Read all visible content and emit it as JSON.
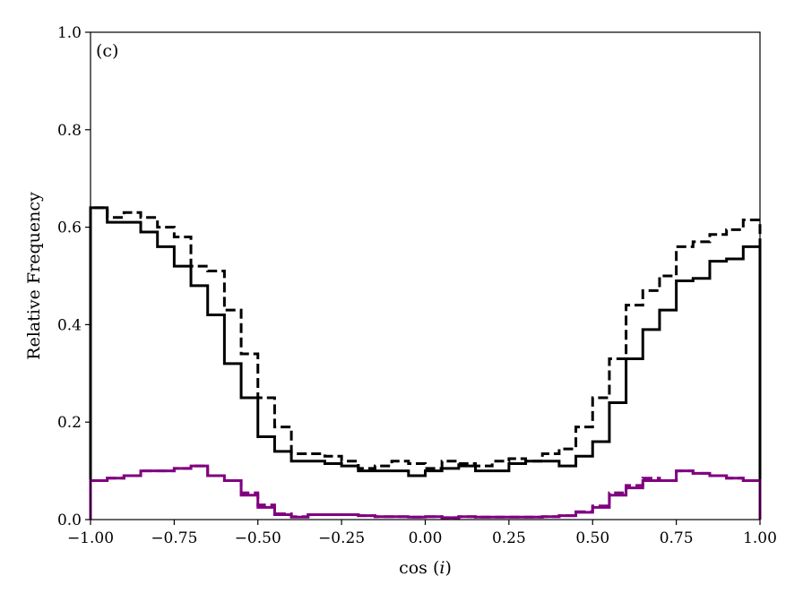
{
  "chart_data": {
    "type": "line",
    "step": true,
    "panel_label": "(c)",
    "xlabel": "cos (i)",
    "xlabel_parts": [
      "cos (",
      "i",
      ")"
    ],
    "ylabel": "Relative Frequency",
    "xlim": [
      -1.0,
      1.0
    ],
    "ylim": [
      0.0,
      1.0
    ],
    "xticks": [
      -1.0,
      -0.75,
      -0.5,
      -0.25,
      0.0,
      0.25,
      0.5,
      0.75,
      1.0
    ],
    "xtick_labels": [
      "−1.00",
      "−0.75",
      "−0.50",
      "−0.25",
      "0.00",
      "0.25",
      "0.50",
      "0.75",
      "1.00"
    ],
    "yticks": [
      0.0,
      0.2,
      0.4,
      0.6,
      0.8,
      1.0
    ],
    "ytick_labels": [
      "0.0",
      "0.2",
      "0.4",
      "0.6",
      "0.8",
      "1.0"
    ],
    "grid": false,
    "bin_edges": [
      -1.0,
      -0.95,
      -0.9,
      -0.85,
      -0.8,
      -0.75,
      -0.7,
      -0.65,
      -0.6,
      -0.55,
      -0.5,
      -0.45,
      -0.4,
      -0.35,
      -0.3,
      -0.25,
      -0.2,
      -0.15,
      -0.1,
      -0.05,
      0.0,
      0.05,
      0.1,
      0.15,
      0.2,
      0.25,
      0.3,
      0.35,
      0.4,
      0.45,
      0.5,
      0.55,
      0.6,
      0.65,
      0.7,
      0.75,
      0.8,
      0.85,
      0.9,
      0.95,
      1.0
    ],
    "series": [
      {
        "color": "#000000",
        "linestyle": "solid",
        "values": [
          0.64,
          0.61,
          0.61,
          0.59,
          0.56,
          0.52,
          0.48,
          0.42,
          0.32,
          0.25,
          0.17,
          0.14,
          0.12,
          0.12,
          0.115,
          0.11,
          0.1,
          0.1,
          0.1,
          0.09,
          0.1,
          0.105,
          0.11,
          0.1,
          0.1,
          0.115,
          0.12,
          0.12,
          0.11,
          0.13,
          0.16,
          0.24,
          0.33,
          0.39,
          0.43,
          0.49,
          0.495,
          0.53,
          0.535,
          0.56,
          0.58
        ]
      },
      {
        "color": "#000000",
        "linestyle": "dashed",
        "values": [
          0.64,
          0.62,
          0.63,
          0.62,
          0.6,
          0.58,
          0.52,
          0.51,
          0.43,
          0.34,
          0.25,
          0.19,
          0.135,
          0.135,
          0.13,
          0.12,
          0.105,
          0.11,
          0.12,
          0.115,
          0.105,
          0.12,
          0.115,
          0.11,
          0.12,
          0.125,
          0.12,
          0.135,
          0.145,
          0.19,
          0.25,
          0.33,
          0.44,
          0.47,
          0.5,
          0.56,
          0.57,
          0.585,
          0.595,
          0.615,
          0.63
        ]
      },
      {
        "color": "#800080",
        "linestyle": "solid",
        "values": [
          0.08,
          0.085,
          0.09,
          0.1,
          0.1,
          0.105,
          0.11,
          0.09,
          0.08,
          0.05,
          0.025,
          0.01,
          0.005,
          0.01,
          0.01,
          0.01,
          0.008,
          0.006,
          0.006,
          0.005,
          0.006,
          0.004,
          0.006,
          0.005,
          0.005,
          0.005,
          0.005,
          0.006,
          0.008,
          0.015,
          0.025,
          0.05,
          0.065,
          0.08,
          0.08,
          0.1,
          0.095,
          0.09,
          0.085,
          0.08,
          0.08
        ]
      },
      {
        "color": "#800080",
        "linestyle": "dashed",
        "values": [
          0.08,
          0.085,
          0.09,
          0.1,
          0.1,
          0.105,
          0.11,
          0.09,
          0.08,
          0.055,
          0.03,
          0.012,
          0.006,
          0.01,
          0.01,
          0.01,
          0.008,
          0.006,
          0.006,
          0.005,
          0.006,
          0.004,
          0.006,
          0.005,
          0.005,
          0.005,
          0.005,
          0.006,
          0.008,
          0.016,
          0.028,
          0.055,
          0.07,
          0.085,
          0.08,
          0.1,
          0.095,
          0.09,
          0.085,
          0.08,
          0.08
        ]
      }
    ]
  }
}
